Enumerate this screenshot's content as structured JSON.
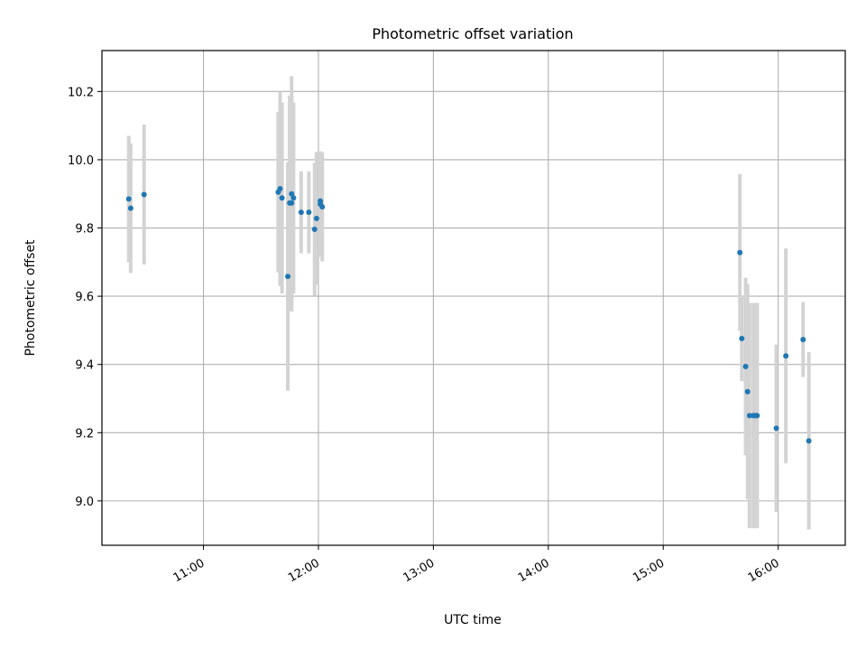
{
  "chart_data": {
    "type": "scatter",
    "title": "Photometric offset variation",
    "xlabel": "UTC time",
    "ylabel": "Photometric offset",
    "x_ticks": [
      "11:00",
      "12:00",
      "13:00",
      "14:00",
      "15:00",
      "16:00"
    ],
    "y_ticks": [
      "9.0",
      "9.2",
      "9.4",
      "9.6",
      "9.8",
      "10.0",
      "10.2"
    ],
    "xlim": [
      "10:07",
      "16:35"
    ],
    "ylim": [
      8.87,
      10.32
    ],
    "grid": true,
    "marker_color": "#1f77b4",
    "errorbar_color": "#d3d3d3",
    "points": [
      {
        "t": "10:21",
        "y": 9.885,
        "err": 0.185
      },
      {
        "t": "10:22",
        "y": 9.858,
        "err": 0.19
      },
      {
        "t": "10:29",
        "y": 9.898,
        "err": 0.205
      },
      {
        "t": "11:39",
        "y": 9.905,
        "err": 0.235
      },
      {
        "t": "11:40",
        "y": 9.915,
        "err": 0.285
      },
      {
        "t": "11:41",
        "y": 9.888,
        "err": 0.28
      },
      {
        "t": "11:44",
        "y": 9.658,
        "err": 0.335
      },
      {
        "t": "11:45",
        "y": 9.873,
        "err": 0.315
      },
      {
        "t": "11:46",
        "y": 9.873,
        "err": 0.315
      },
      {
        "t": "11:46",
        "y": 9.9,
        "err": 0.345
      },
      {
        "t": "11:47",
        "y": 9.888,
        "err": 0.28
      },
      {
        "t": "11:51",
        "y": 9.846,
        "err": 0.12
      },
      {
        "t": "11:55",
        "y": 9.846,
        "err": 0.12
      },
      {
        "t": "11:58",
        "y": 9.796,
        "err": 0.195
      },
      {
        "t": "11:59",
        "y": 9.828,
        "err": 0.195
      },
      {
        "t": "12:01",
        "y": 9.879,
        "err": 0.145
      },
      {
        "t": "12:01",
        "y": 9.87,
        "err": 0.155
      },
      {
        "t": "12:02",
        "y": 9.862,
        "err": 0.16
      },
      {
        "t": "15:40",
        "y": 9.728,
        "err": 0.23
      },
      {
        "t": "15:41",
        "y": 9.476,
        "err": 0.125
      },
      {
        "t": "15:43",
        "y": 9.394,
        "err": 0.26
      },
      {
        "t": "15:44",
        "y": 9.32,
        "err": 0.315
      },
      {
        "t": "15:45",
        "y": 9.25,
        "err": 0.33
      },
      {
        "t": "15:47",
        "y": 9.25,
        "err": 0.33
      },
      {
        "t": "15:48",
        "y": 9.25,
        "err": 0.33
      },
      {
        "t": "15:49",
        "y": 9.25,
        "err": 0.33
      },
      {
        "t": "15:59",
        "y": 9.213,
        "err": 0.245
      },
      {
        "t": "16:04",
        "y": 9.425,
        "err": 0.315
      },
      {
        "t": "16:13",
        "y": 9.473,
        "err": 0.11
      },
      {
        "t": "16:16",
        "y": 9.176,
        "err": 0.26
      }
    ]
  }
}
